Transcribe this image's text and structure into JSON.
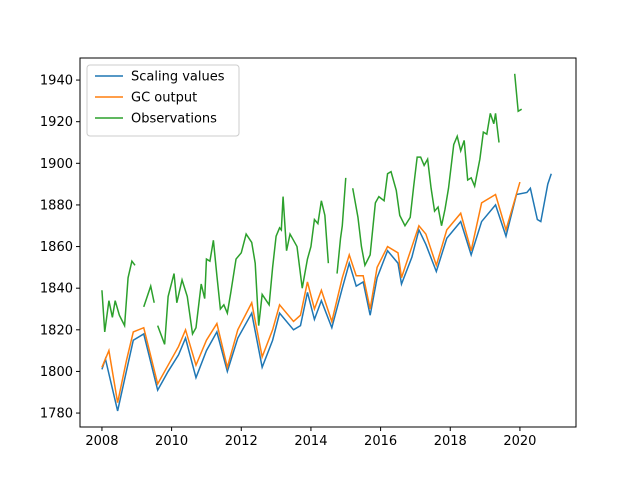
{
  "chart_data": {
    "type": "line",
    "xlim": [
      2007.37,
      2021.61
    ],
    "ylim": [
      1773.3,
      1950.6
    ],
    "xticks": [
      2008,
      2010,
      2012,
      2014,
      2016,
      2018,
      2020
    ],
    "yticks": [
      1780,
      1800,
      1820,
      1840,
      1860,
      1880,
      1900,
      1920,
      1940
    ],
    "legend": "upper left",
    "series": [
      {
        "name": "Scaling values",
        "color": "#1f77b4",
        "x": [
          2008.0,
          2008.1,
          2008.45,
          2008.7,
          2008.9,
          2009.2,
          2009.6,
          2009.9,
          2010.2,
          2010.4,
          2010.7,
          2011.0,
          2011.3,
          2011.6,
          2011.9,
          2012.3,
          2012.6,
          2012.9,
          2013.1,
          2013.5,
          2013.7,
          2013.9,
          2014.1,
          2014.3,
          2014.6,
          2014.9,
          2015.1,
          2015.3,
          2015.5,
          2015.7,
          2015.9,
          2016.2,
          2016.5,
          2016.6,
          2016.9,
          2017.1,
          2017.3,
          2017.6,
          2017.9,
          2018.3,
          2018.6,
          2018.9,
          2019.3,
          2019.6,
          2019.9,
          2020.2,
          2020.3,
          2020.5,
          2020.6,
          2020.8,
          2020.9
        ],
        "values": [
          1801,
          1806,
          1781,
          1800,
          1815,
          1818,
          1791,
          1800,
          1808,
          1816,
          1797,
          1810,
          1819,
          1800,
          1816,
          1828,
          1802,
          1815,
          1828,
          1820,
          1822,
          1838,
          1825,
          1834,
          1821,
          1840,
          1852,
          1841,
          1843,
          1827,
          1845,
          1858,
          1852,
          1842,
          1855,
          1868,
          1861,
          1848,
          1864,
          1872,
          1856,
          1872,
          1880,
          1865,
          1885,
          1886,
          1888,
          1873,
          1872,
          1890,
          1895
        ]
      },
      {
        "name": "GC output",
        "color": "#ff7f0e",
        "x": [
          2008.0,
          2008.2,
          2008.45,
          2008.7,
          2008.9,
          2009.2,
          2009.6,
          2009.9,
          2010.2,
          2010.4,
          2010.7,
          2011.0,
          2011.3,
          2011.6,
          2011.9,
          2012.3,
          2012.6,
          2012.9,
          2013.1,
          2013.5,
          2013.7,
          2013.9,
          2014.1,
          2014.3,
          2014.6,
          2014.9,
          2015.1,
          2015.3,
          2015.5,
          2015.7,
          2015.9,
          2016.2,
          2016.5,
          2016.6,
          2016.9,
          2017.1,
          2017.3,
          2017.6,
          2017.9,
          2018.3,
          2018.6,
          2018.9,
          2019.3,
          2019.6,
          2020.0
        ],
        "values": [
          1802,
          1810,
          1785,
          1805,
          1819,
          1821,
          1794,
          1803,
          1812,
          1820,
          1803,
          1815,
          1823,
          1802,
          1820,
          1833,
          1807,
          1820,
          1832,
          1824,
          1827,
          1843,
          1830,
          1839,
          1824,
          1845,
          1856,
          1846,
          1846,
          1830,
          1850,
          1860,
          1857,
          1845,
          1860,
          1870,
          1866,
          1851,
          1868,
          1876,
          1858,
          1881,
          1885,
          1868,
          1891
        ]
      },
      {
        "name": "Observations",
        "color": "#2ca02c",
        "x": [
          2008.0,
          2008.08,
          2008.2,
          2008.3,
          2008.38,
          2008.5,
          2008.65,
          2008.75,
          2008.86,
          2008.95,
          2009.05,
          2009.2,
          2009.4,
          2009.5,
          2009.55,
          2009.6,
          2009.8,
          2009.9,
          2010.07,
          2010.15,
          2010.3,
          2010.45,
          2010.6,
          2010.7,
          2010.85,
          2010.95,
          2011.0,
          2011.1,
          2011.2,
          2011.3,
          2011.4,
          2011.5,
          2011.6,
          2011.7,
          2011.85,
          2012.0,
          2012.14,
          2012.3,
          2012.4,
          2012.5,
          2012.6,
          2012.8,
          2012.9,
          2013.0,
          2013.1,
          2013.15,
          2013.2,
          2013.3,
          2013.4,
          2013.6,
          2013.75,
          2013.9,
          2014.0,
          2014.1,
          2014.2,
          2014.3,
          2014.4,
          2014.5,
          2014.6,
          2014.75,
          2014.85,
          2014.9,
          2015.0,
          2015.1,
          2015.2,
          2015.35,
          2015.45,
          2015.55,
          2015.7,
          2015.85,
          2015.95,
          2016.1,
          2016.2,
          2016.3,
          2016.45,
          2016.55,
          2016.7,
          2016.85,
          2016.95,
          2017.05,
          2017.15,
          2017.25,
          2017.35,
          2017.45,
          2017.55,
          2017.65,
          2017.75,
          2017.85,
          2017.95,
          2018.1,
          2018.2,
          2018.3,
          2018.4,
          2018.5,
          2018.6,
          2018.7,
          2018.85,
          2018.95,
          2019.05,
          2019.15,
          2019.25,
          2019.3,
          2019.4,
          2019.6,
          2019.85,
          2019.95,
          2020.05
        ],
        "values": [
          1839,
          1819,
          1834,
          1826,
          1834,
          1827,
          1822,
          1845,
          1853,
          1851,
          null,
          1831,
          1841,
          1833,
          null,
          1822,
          1813,
          1836,
          1847,
          1833,
          1844,
          1836,
          1818,
          1821,
          1842,
          1835,
          1854,
          1853,
          1863,
          1846,
          1830,
          1832,
          1828,
          1838,
          1854,
          1857,
          1866,
          1862,
          1852,
          1822,
          1837,
          1832,
          1850,
          1865,
          1869,
          1868,
          1884,
          1858,
          1866,
          1860,
          1840,
          1854,
          1860,
          1873,
          1871,
          1882,
          1875,
          1852,
          null,
          1847,
          1864,
          1870,
          1893,
          null,
          1888,
          1874,
          1860,
          1851,
          1856,
          1881,
          1884,
          1882,
          1895,
          1896,
          1887,
          1875,
          1870,
          1874,
          1889,
          1903,
          1903,
          1899,
          1902,
          1888,
          1877,
          1879,
          1870,
          1878,
          1888,
          1909,
          1913,
          1906,
          1911,
          1892,
          1893,
          1889,
          1902,
          1915,
          1914,
          1924,
          1919,
          1924,
          1910,
          null,
          1943,
          1925,
          1926
        ]
      }
    ]
  }
}
